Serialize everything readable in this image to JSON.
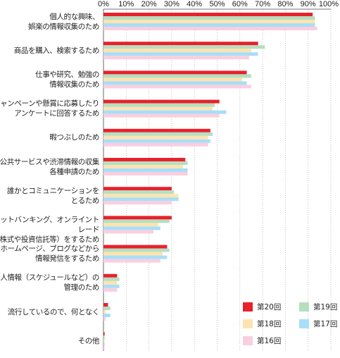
{
  "chart_data": {
    "type": "bar",
    "orientation": "horizontal",
    "xlim": [
      0,
      100
    ],
    "x_ticks": [
      "0%",
      "10%",
      "20%",
      "30%",
      "40%",
      "50%",
      "60%",
      "70%",
      "80%",
      "90%",
      "100%"
    ],
    "grid": true,
    "legend_position": "bottom-right",
    "categories": [
      "個人的な興味、\n娯楽の情報収集のため",
      "商品を購入、検索するため",
      "仕事や研究、勉強の\n情報収集のため",
      "キャンペーンや懸賞に応募したり\nアンケートに回答するため",
      "暇つぶしのため",
      "公共サービスや渋滞情報の収集\n各種申請のため",
      "誰かとコミュニケーションを\nとるため",
      "ネットバンキング、オンライントレード\n（株式や投資信託等）をするため",
      "ホームページ、ブログなどから\n情報発信をするため",
      "個人情報（スケジュールなど）の\n管理のため",
      "流行しているので、何となく",
      "その他"
    ],
    "series": [
      {
        "name": "第20回",
        "color": "#e8212b",
        "values": [
          92,
          68,
          63,
          51,
          47,
          36,
          30,
          30,
          28,
          6,
          2,
          0.5
        ]
      },
      {
        "name": "第19回",
        "color": "#b5dfc0",
        "values": [
          93,
          71,
          65,
          49,
          48,
          37,
          31,
          29,
          29,
          7,
          3,
          0.5
        ]
      },
      {
        "name": "第18回",
        "color": "#fde3b1",
        "values": [
          93,
          65,
          61,
          48,
          46,
          35,
          33,
          24,
          26,
          6,
          1,
          0.5
        ]
      },
      {
        "name": "第17回",
        "color": "#a8def7",
        "values": [
          93,
          68,
          63,
          54,
          47,
          37,
          33,
          25,
          28,
          7,
          3,
          0.5
        ]
      },
      {
        "name": "第16回",
        "color": "#f9cfe0",
        "values": [
          94,
          64,
          65,
          51,
          46,
          37,
          30,
          22,
          25,
          6,
          1,
          0.5
        ]
      }
    ],
    "legend_order": [
      "第20回",
      "第19回",
      "第18回",
      "第17回",
      "第16回"
    ]
  }
}
